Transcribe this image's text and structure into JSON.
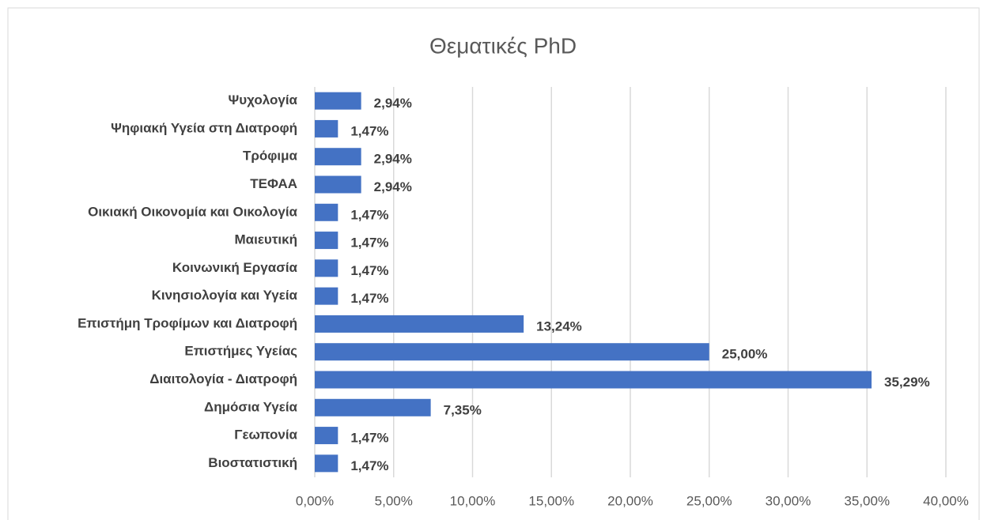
{
  "chart_data": {
    "type": "bar",
    "orientation": "horizontal",
    "title": "Θεματικές PhD",
    "categories": [
      "Ψυχολογία",
      "Ψηφιακή Υγεία στη Διατροφή",
      "Τρόφιμα",
      "ΤΕΦΑΑ",
      "Οικιακή Οικονομία και Οικολογία",
      "Μαιευτική",
      "Κοινωνική Εργασία",
      "Κινησιολογία και Υγεία",
      "Επιστήμη Τροφίμων και Διατροφή",
      "Επιστήμες Υγείας",
      "Διαιτολογία - Διατροφή",
      "Δημόσια Υγεία",
      "Γεωπονία",
      "Βιοστατιστική"
    ],
    "values": [
      2.94,
      1.47,
      2.94,
      2.94,
      1.47,
      1.47,
      1.47,
      1.47,
      13.24,
      25.0,
      35.29,
      7.35,
      1.47,
      1.47
    ],
    "value_labels": [
      "2,94%",
      "1,47%",
      "2,94%",
      "2,94%",
      "1,47%",
      "1,47%",
      "1,47%",
      "1,47%",
      "13,24%",
      "25,00%",
      "35,29%",
      "7,35%",
      "1,47%",
      "1,47%"
    ],
    "color": "#4472c4",
    "xlim": [
      0,
      40
    ],
    "xticks": [
      {
        "value": 0,
        "label": "0,00%"
      },
      {
        "value": 5,
        "label": "5,00%"
      },
      {
        "value": 10,
        "label": "10,00%"
      },
      {
        "value": 15,
        "label": "15,00%"
      },
      {
        "value": 20,
        "label": "20,00%"
      },
      {
        "value": 25,
        "label": "25,00%"
      },
      {
        "value": 30,
        "label": "30,00%"
      },
      {
        "value": 35,
        "label": "35,00%"
      },
      {
        "value": 40,
        "label": "40,00%"
      }
    ],
    "grid": true
  }
}
